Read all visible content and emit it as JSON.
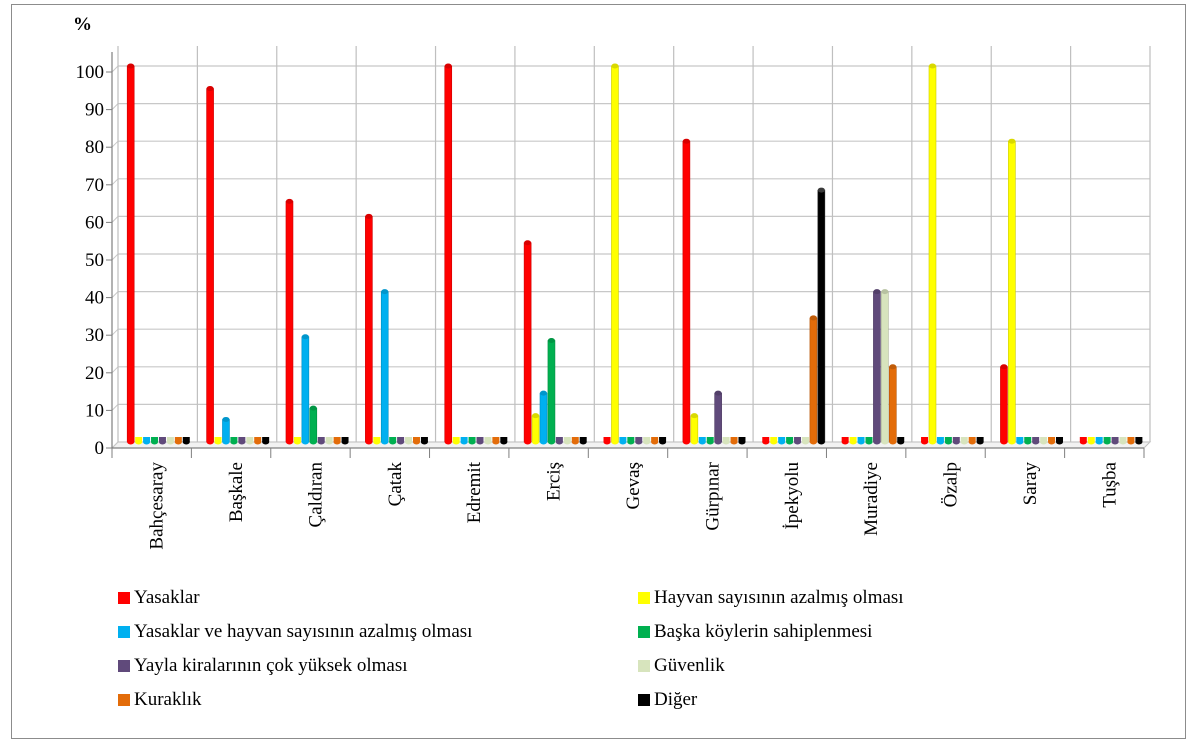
{
  "chart_data": {
    "type": "bar",
    "ylabel": "%",
    "ylim": [
      0,
      100
    ],
    "yticks": [
      0,
      10,
      20,
      30,
      40,
      50,
      60,
      70,
      80,
      90,
      100
    ],
    "grid": true,
    "legend_position": "bottom",
    "categories": [
      "Bahçesaray",
      "Başkale",
      "Çaldıran",
      "Çatak",
      "Edremit",
      "Erciş",
      "Gevaş",
      "Gürpınar",
      "İpekyolu",
      "Muradiye",
      "Özalp",
      "Saray",
      "Tuşba"
    ],
    "series": [
      {
        "name": "Yasaklar",
        "color": "#ff0000",
        "values": [
          100,
          94,
          64,
          60,
          100,
          53,
          0,
          80,
          0,
          0,
          0,
          20,
          0
        ]
      },
      {
        "name": "Hayvan sayısının azalmış olması",
        "color": "#ffff00",
        "values": [
          0,
          0,
          0,
          0,
          0,
          7,
          100,
          7,
          0,
          0,
          100,
          80,
          0
        ]
      },
      {
        "name": "Yasaklar ve hayvan sayısının azalmış olması",
        "color": "#00b0f0",
        "values": [
          0,
          6,
          28,
          40,
          0,
          13,
          0,
          0,
          0,
          0,
          0,
          0,
          0
        ]
      },
      {
        "name": "Başka köylerin sahiplenmesi",
        "color": "#00b050",
        "values": [
          0,
          0,
          9,
          0,
          0,
          27,
          0,
          0,
          0,
          0,
          0,
          0,
          0
        ]
      },
      {
        "name": "Yayla kiralarının çok yüksek olması",
        "color": "#604a7b",
        "values": [
          0,
          0,
          0,
          0,
          0,
          0,
          0,
          13,
          0,
          40,
          0,
          0,
          0
        ]
      },
      {
        "name": "Güvenlik",
        "color": "#d7e4bd",
        "values": [
          0,
          0,
          0,
          0,
          0,
          0,
          0,
          0,
          0,
          40,
          0,
          0,
          0
        ]
      },
      {
        "name": "Kuraklık",
        "color": "#e36c09",
        "values": [
          0,
          0,
          0,
          0,
          0,
          0,
          0,
          0,
          33,
          20,
          0,
          0,
          0
        ]
      },
      {
        "name": "Diğer",
        "color": "#000000",
        "values": [
          0,
          0,
          0,
          0,
          0,
          0,
          0,
          0,
          67,
          0,
          0,
          0,
          0
        ]
      }
    ]
  }
}
